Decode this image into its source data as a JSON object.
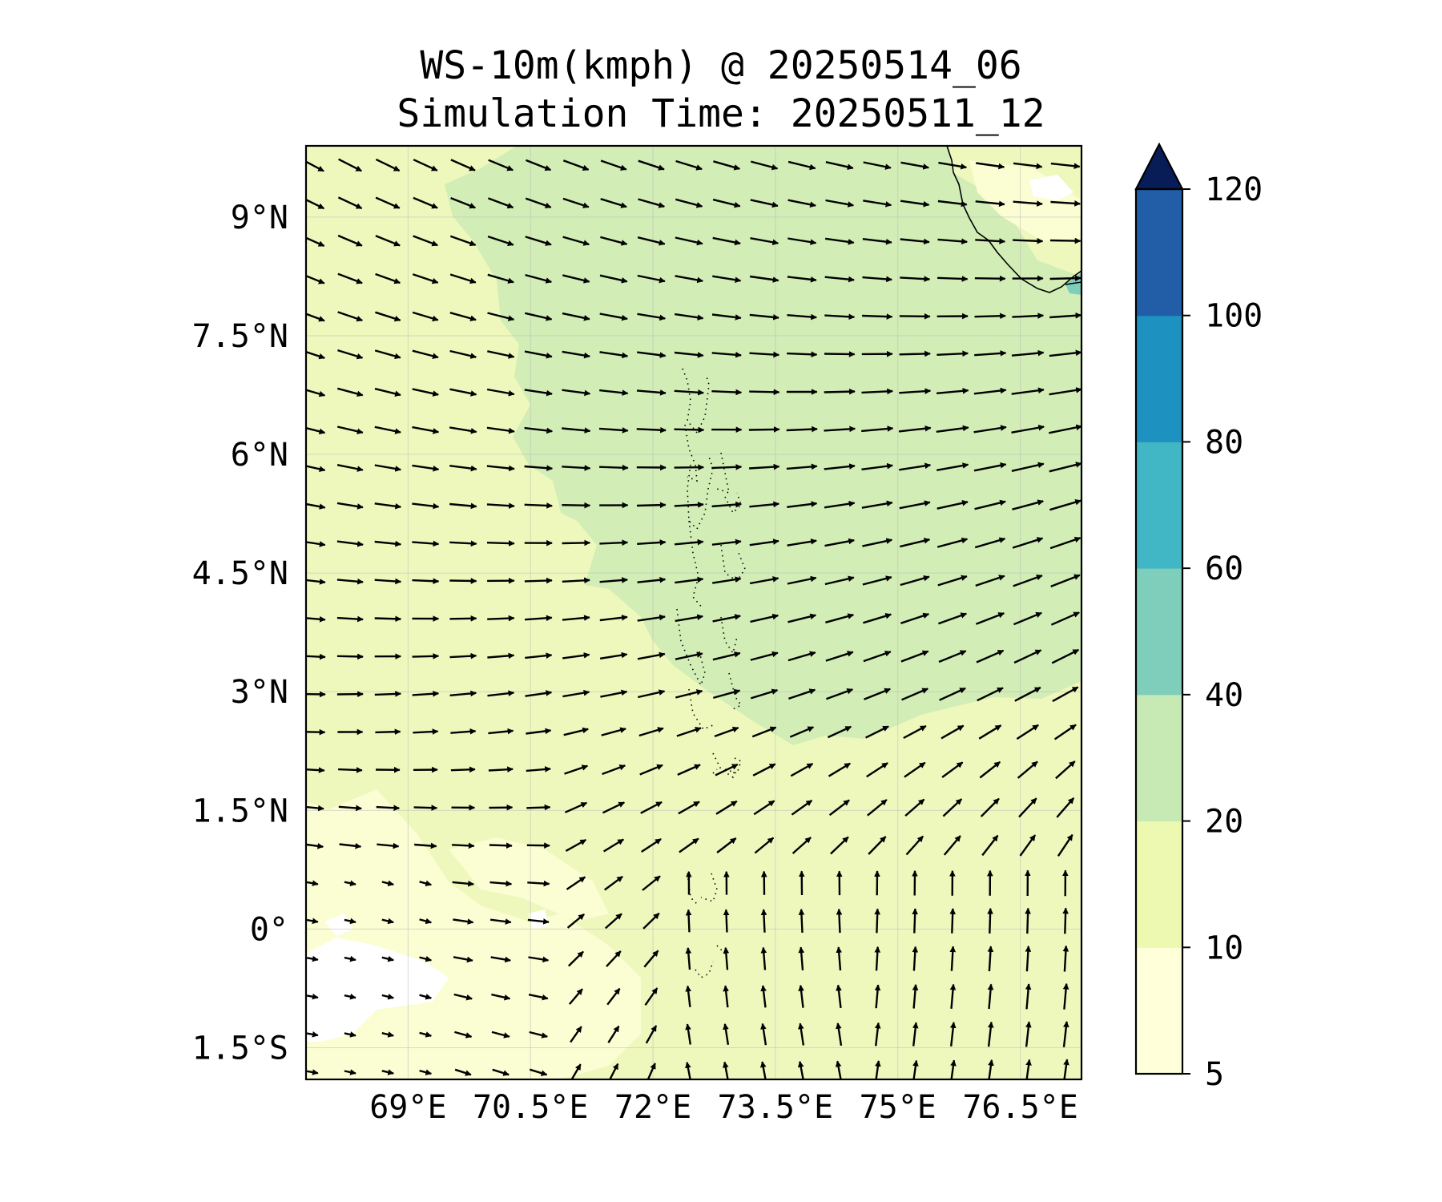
{
  "title": {
    "line1": "WS-10m(kmph) @ 20250514_06",
    "line2": "Simulation Time: 20250511_12"
  },
  "map": {
    "lon_range": [
      67.75,
      77.25
    ],
    "lat_range": [
      -1.9,
      9.9
    ],
    "lat_ticks": [
      {
        "value": 9.0,
        "label": "9°N"
      },
      {
        "value": 7.5,
        "label": "7.5°N"
      },
      {
        "value": 6.0,
        "label": "6°N"
      },
      {
        "value": 4.5,
        "label": "4.5°N"
      },
      {
        "value": 3.0,
        "label": "3°N"
      },
      {
        "value": 1.5,
        "label": "1.5°N"
      },
      {
        "value": 0.0,
        "label": "0°"
      },
      {
        "value": -1.5,
        "label": "1.5°S"
      }
    ],
    "lon_ticks": [
      {
        "value": 69.0,
        "label": "69°E"
      },
      {
        "value": 70.5,
        "label": "70.5°E"
      },
      {
        "value": 72.0,
        "label": "72°E"
      },
      {
        "value": 73.5,
        "label": "73.5°E"
      },
      {
        "value": 75.0,
        "label": "75°E"
      },
      {
        "value": 76.5,
        "label": "76.5°E"
      }
    ]
  },
  "colorbar": {
    "levels": [
      "5",
      "10",
      "20",
      "40",
      "60",
      "80",
      "100",
      "120"
    ],
    "colors": [
      "#ffffd9",
      "#edf8b1",
      "#c7e9b4",
      "#7fcdbb",
      "#41b6c4",
      "#1d91c0",
      "#225ea8",
      "#0c2c84"
    ],
    "extend_color": "#081d58"
  },
  "field_colors": {
    "white": "#ffffff",
    "band_5_10": "#fbfdd2",
    "band_10_20": "#eef8bd",
    "band_20_40": "#d2edb6",
    "band_40_60": "#7fcdbb"
  }
}
